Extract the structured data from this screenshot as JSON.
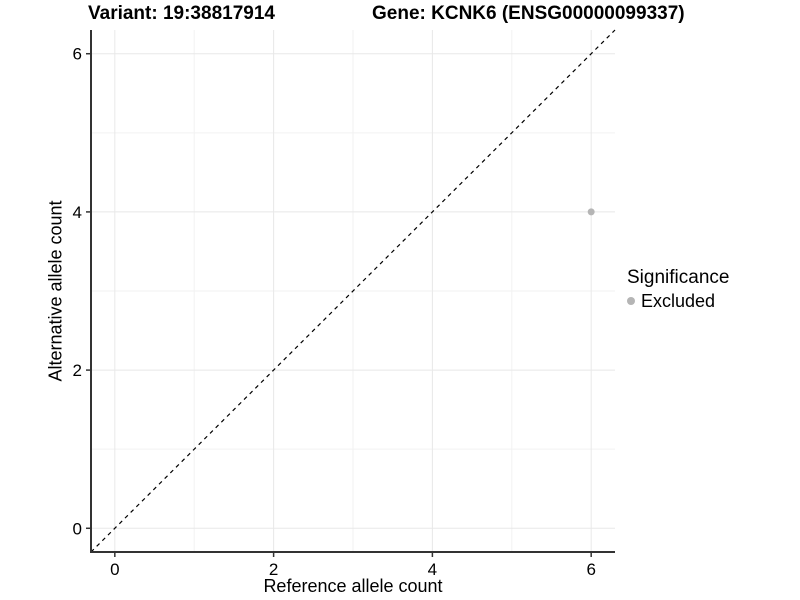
{
  "chart_data": {
    "type": "scatter",
    "title_left": "Variant: 19:38817914",
    "title_right": "Gene: KCNK6 (ENSG00000099337)",
    "xlabel": "Reference allele count",
    "ylabel": "Alternative allele count",
    "xlim": [
      -0.3,
      6.3
    ],
    "ylim": [
      -0.3,
      6.3
    ],
    "x_major_ticks": [
      0,
      2,
      4,
      6
    ],
    "y_major_ticks": [
      0,
      2,
      4,
      6
    ],
    "x_minor_ticks": [
      1,
      3,
      5
    ],
    "y_minor_ticks": [
      1,
      3,
      5
    ],
    "grid": true,
    "points": [
      {
        "x": 6,
        "y": 4,
        "series": "Excluded"
      }
    ],
    "reference_line": {
      "slope": 1,
      "intercept": 0,
      "style": "dashed"
    },
    "legend": {
      "title": "Significance",
      "position": "right",
      "items": [
        {
          "label": "Excluded",
          "color": "#b5b5b5"
        }
      ]
    },
    "colors": {
      "point": "#b5b5b5",
      "axis": "#333333",
      "grid_major": "#e8e8e8",
      "grid_minor": "#f2f2f2",
      "reference_line": "#000000",
      "text": "#000000"
    }
  }
}
